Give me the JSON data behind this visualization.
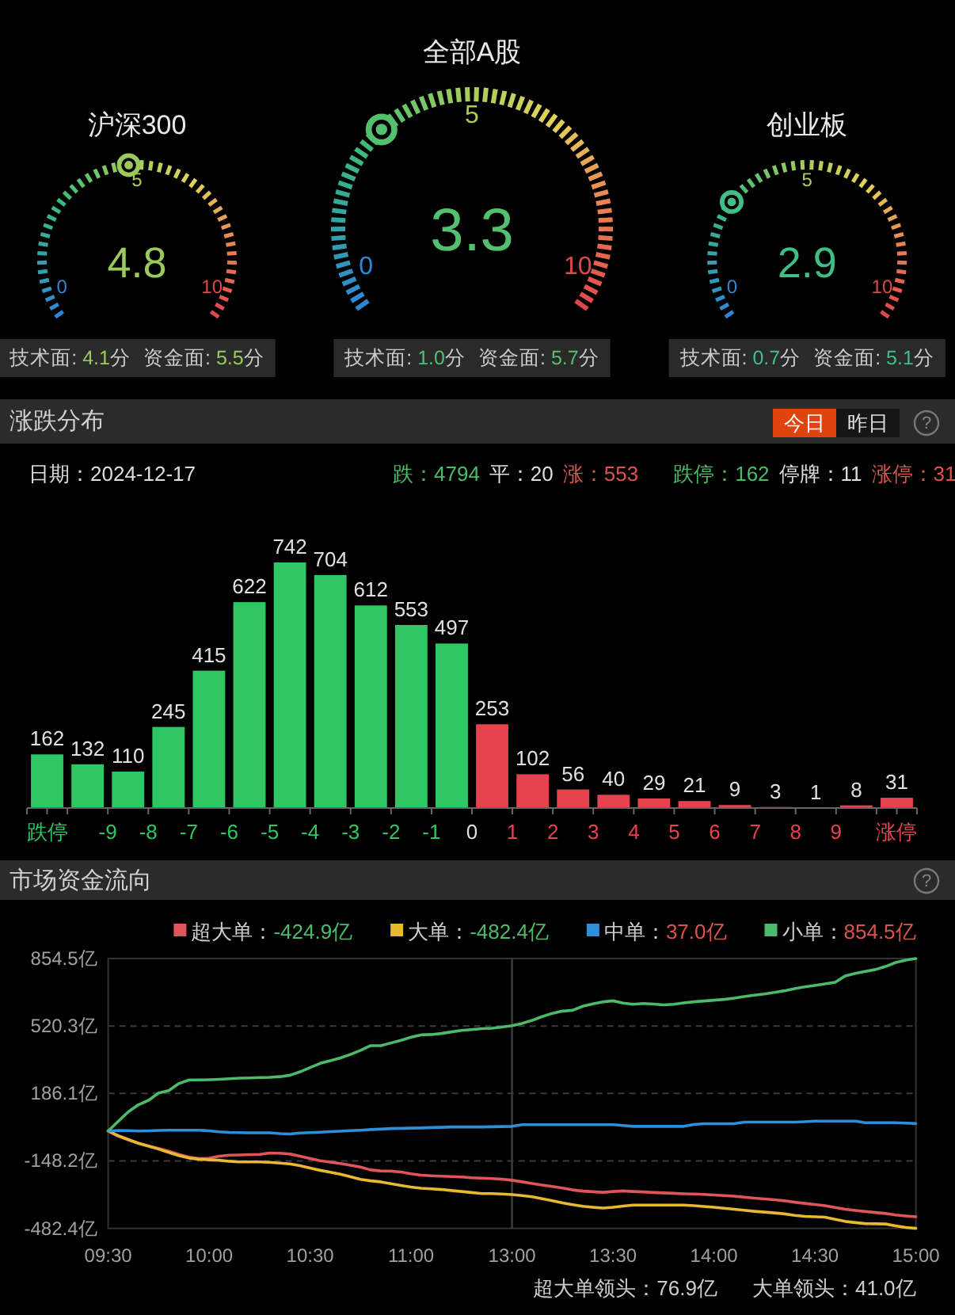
{
  "chart_data": [
    {
      "type": "other",
      "title": "沪深300",
      "values": [
        4.8
      ],
      "colors": [
        "#9cc95c"
      ],
      "data_labels": true,
      "annotations": [
        "技术面: 4.1分",
        "资金面: 5.5分",
        "0",
        "5",
        "10"
      ]
    },
    {
      "type": "other",
      "title": "全部A股",
      "values": [
        3.3
      ],
      "colors": [
        "#52c06e"
      ],
      "data_labels": true,
      "annotations": [
        "技术面: 1.0分",
        "资金面: 5.7分",
        "0",
        "5",
        "10"
      ]
    },
    {
      "type": "other",
      "title": "创业板",
      "values": [
        2.9
      ],
      "colors": [
        "#3fbf85"
      ],
      "data_labels": true,
      "annotations": [
        "技术面: 0.7分",
        "资金面: 5.1分",
        "0",
        "5",
        "10"
      ]
    },
    {
      "type": "bar",
      "title": "涨跌分布",
      "x": [
        -10.5,
        -9.5,
        -8.5,
        -7.5,
        -6.5,
        -5.5,
        -4.5,
        -3.5,
        -2.5,
        -1.5,
        -0.5,
        0.5,
        1.5,
        2.5,
        3.5,
        4.5,
        5.5,
        6.5,
        7.5,
        8.5,
        9.5,
        10.5
      ],
      "values": [
        162,
        132,
        110,
        245,
        415,
        622,
        742,
        704,
        612,
        553,
        497,
        253,
        102,
        56,
        40,
        29,
        21,
        9,
        3,
        1,
        8,
        31
      ],
      "colors": [
        "#2fc764",
        "#2fc764",
        "#2fc764",
        "#2fc764",
        "#2fc764",
        "#2fc764",
        "#2fc764",
        "#2fc764",
        "#2fc764",
        "#2fc764",
        "#2fc764",
        "#e5434e",
        "#e5434e",
        "#e5434e",
        "#e5434e",
        "#e5434e",
        "#e5434e",
        "#e5434e",
        "#e5434e",
        "#e5434e",
        "#e5434e",
        "#e5434e"
      ],
      "xlim": [
        -11,
        11
      ],
      "xticks": [
        {
          "value": -11,
          "label": null
        },
        {
          "value": -10.5,
          "label": "跌停"
        },
        {
          "value": -10,
          "label": null
        },
        -9,
        -8,
        -7,
        -6,
        -5,
        -4,
        -3,
        -2,
        -1,
        0,
        1,
        2,
        3,
        4,
        5,
        6,
        7,
        8,
        9,
        {
          "value": 10,
          "label": null
        },
        {
          "value": 10.5,
          "label": "涨停"
        },
        {
          "value": 11,
          "label": null
        }
      ],
      "data_labels": true,
      "annotations": [
        "今日",
        "昨日",
        "?",
        "日期：2024-12-17",
        "跌：4794",
        "平：20",
        "涨：553",
        "跌停：162",
        "停牌：11",
        "涨停：31"
      ]
    },
    {
      "type": "line",
      "title": "市场资金流向",
      "categories": [
        "09:30",
        null,
        null,
        null,
        null,
        null,
        null,
        null,
        null,
        null,
        "10:00",
        null,
        null,
        null,
        null,
        null,
        null,
        null,
        null,
        null,
        "10:30",
        null,
        null,
        null,
        null,
        null,
        null,
        null,
        null,
        null,
        "11:00",
        null,
        null,
        null,
        null,
        null,
        null,
        null,
        null,
        null,
        "13:00",
        null,
        null,
        null,
        null,
        null,
        null,
        null,
        null,
        null,
        "13:30",
        null,
        null,
        null,
        null,
        null,
        null,
        null,
        null,
        null,
        "14:00",
        null,
        null,
        null,
        null,
        null,
        null,
        null,
        null,
        null,
        "14:30",
        null,
        null,
        null,
        null,
        null,
        null,
        null,
        null,
        null,
        "15:00"
      ],
      "ylim": [
        -482.4,
        854.5
      ],
      "yticks": [
        {
          "value": -482.4,
          "label": "-482.4亿"
        },
        {
          "value": -148.2,
          "label": "-148.2亿"
        },
        {
          "value": 186.1,
          "label": "186.1亿"
        },
        {
          "value": 520.3,
          "label": "520.3亿"
        },
        {
          "value": 854.5,
          "label": "854.5亿"
        }
      ],
      "grid": "y",
      "legend": "top",
      "ref_lines": [
        {
          "axis": "x",
          "value": "13:00",
          "color": "#3c3c3c"
        }
      ],
      "series": [
        {
          "name": "超大单：-424.9亿",
          "color": "#e0555a",
          "values": [
            0,
            -26,
            -45,
            -61,
            -75,
            -87,
            -100,
            -116,
            -130,
            -137,
            -135,
            -125,
            -120,
            -119,
            -117,
            -116,
            -109,
            -110,
            -114,
            -125,
            -137,
            -147,
            -154,
            -161,
            -170,
            -179,
            -193,
            -198,
            -199,
            -203,
            -212,
            -219,
            -222,
            -224,
            -226,
            -228,
            -232,
            -234,
            -236,
            -239,
            -244,
            -252,
            -260,
            -268,
            -275,
            -283,
            -292,
            -298,
            -301,
            -304,
            -300,
            -297,
            -300,
            -302,
            -305,
            -307,
            -309,
            -311,
            -312,
            -314,
            -317,
            -320,
            -323,
            -328,
            -333,
            -337,
            -341,
            -346,
            -353,
            -359,
            -364,
            -370,
            -379,
            -388,
            -394,
            -399,
            -404,
            -409,
            -416,
            -421,
            -424.9
          ]
        },
        {
          "name": "大单：-482.4亿",
          "color": "#e8b830",
          "values": [
            0,
            -23,
            -42,
            -61,
            -75,
            -90,
            -106,
            -122,
            -134,
            -140,
            -143,
            -145,
            -150,
            -153,
            -153,
            -153,
            -155,
            -159,
            -163,
            -172,
            -184,
            -195,
            -204,
            -214,
            -227,
            -240,
            -247,
            -252,
            -261,
            -270,
            -278,
            -284,
            -287,
            -290,
            -295,
            -300,
            -305,
            -310,
            -310,
            -312,
            -315,
            -320,
            -326,
            -336,
            -346,
            -356,
            -365,
            -373,
            -378,
            -382,
            -378,
            -372,
            -367,
            -367,
            -367,
            -367,
            -367,
            -367,
            -370,
            -374,
            -378,
            -383,
            -388,
            -393,
            -398,
            -402,
            -406,
            -411,
            -418,
            -423,
            -425,
            -427,
            -438,
            -448,
            -454,
            -459,
            -460,
            -461,
            -470,
            -478,
            -482.4
          ]
        },
        {
          "name": "中单：37.0亿",
          "color": "#2d8fd8",
          "values": [
            0,
            3,
            2,
            0,
            1,
            3,
            4,
            4,
            4,
            4,
            1,
            -4,
            -7,
            -8,
            -9,
            -9,
            -9,
            -13,
            -15,
            -10,
            -8,
            -6,
            -3,
            -1,
            2,
            4,
            7,
            9,
            12,
            13,
            14,
            15,
            17,
            18,
            20,
            20,
            20,
            20,
            21,
            22,
            23,
            31,
            31,
            31,
            31,
            31,
            31,
            31,
            31,
            31,
            31,
            27,
            23,
            23,
            23,
            23,
            23,
            23,
            32,
            36,
            36,
            36,
            36,
            44,
            44,
            44,
            44,
            44,
            44,
            46,
            49,
            49,
            49,
            49,
            49,
            41,
            41,
            41,
            41,
            39,
            37.0
          ]
        },
        {
          "name": "小单：854.5亿",
          "color": "#4cba6a",
          "values": [
            0,
            48,
            95,
            130,
            152,
            188,
            200,
            235,
            253,
            253,
            254,
            256,
            259,
            262,
            263,
            265,
            266,
            269,
            276,
            293,
            314,
            335,
            348,
            362,
            379,
            400,
            423,
            423,
            436,
            449,
            465,
            476,
            478,
            483,
            491,
            498,
            502,
            507,
            509,
            515,
            522,
            533,
            548,
            567,
            583,
            594,
            598,
            618,
            630,
            640,
            645,
            634,
            628,
            632,
            629,
            625,
            628,
            635,
            640,
            644,
            648,
            652,
            658,
            666,
            673,
            679,
            687,
            695,
            705,
            714,
            721,
            729,
            737,
            768,
            781,
            791,
            800,
            815,
            835,
            847,
            854.5
          ]
        }
      ],
      "annotations": [
        "?",
        "超大单领头：76.9亿",
        "大单领头：41.0亿"
      ]
    }
  ]
}
